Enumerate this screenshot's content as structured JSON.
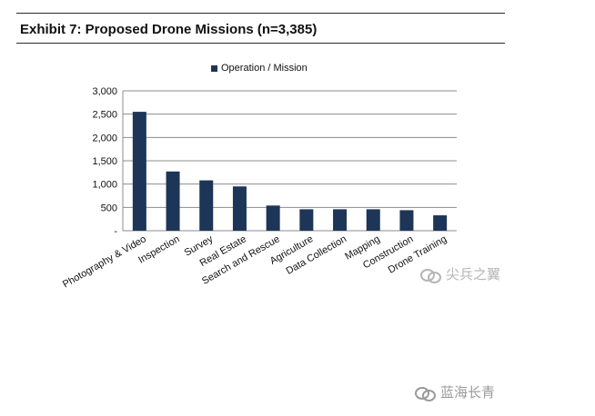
{
  "title": "Exhibit 7: Proposed Drone Missions (n=3,385)",
  "legend": {
    "label": "Operation / Mission",
    "color": "#1d3557"
  },
  "chart_data": {
    "type": "bar",
    "title": "Exhibit 7: Proposed Drone Missions (n=3,385)",
    "xlabel": "",
    "ylabel": "",
    "ylim": [
      0,
      3000
    ],
    "yticks": [
      0,
      500,
      1000,
      1500,
      2000,
      2500,
      3000
    ],
    "ytick_labels": [
      "-",
      "500",
      "1,000",
      "1,500",
      "2,000",
      "2,500",
      "3,000"
    ],
    "grid": true,
    "legend_position": "top-center",
    "categories": [
      "Photography & Video",
      "Inspection",
      "Survey",
      "Real Estate",
      "Search and Rescue",
      "Agriculture",
      "Data Collection",
      "Mapping",
      "Construction",
      "Drone Training"
    ],
    "series": [
      {
        "name": "Operation / Mission",
        "values": [
          2550,
          1270,
          1080,
          950,
          540,
          460,
          460,
          460,
          440,
          330
        ]
      }
    ]
  },
  "watermarks": {
    "top": "尖兵之翼",
    "bottom": "蓝海长青"
  }
}
